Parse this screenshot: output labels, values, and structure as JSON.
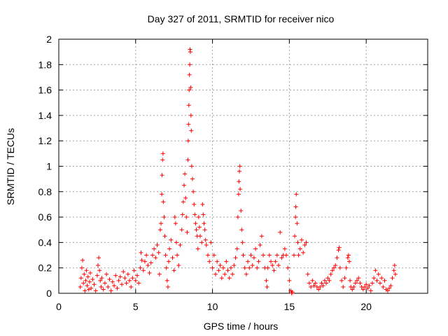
{
  "chart_data": {
    "type": "scatter",
    "title": "Day 327 of 2011, SRMTID for receiver nico",
    "xlabel": "GPS time / hours",
    "ylabel": "SRMTID / TECUs",
    "xlim": [
      0,
      24
    ],
    "ylim": [
      0,
      2
    ],
    "xticks": [
      "0",
      "5",
      "10",
      "15",
      "20"
    ],
    "yticks": [
      "0",
      "0.2",
      "0.4",
      "0.6",
      "0.8",
      "1",
      "1.2",
      "1.4",
      "1.6",
      "1.8",
      "2"
    ],
    "grid": true,
    "marker": "+",
    "color": "#ff0000",
    "series": [
      {
        "name": "SRMTID",
        "points": [
          [
            1.4,
            0.05
          ],
          [
            1.45,
            0.12
          ],
          [
            1.5,
            0.2
          ],
          [
            1.55,
            0.26
          ],
          [
            1.6,
            0.08
          ],
          [
            1.65,
            0.15
          ],
          [
            1.7,
            0.02
          ],
          [
            1.75,
            0.1
          ],
          [
            1.8,
            0.18
          ],
          [
            1.85,
            0.06
          ],
          [
            1.9,
            0.13
          ],
          [
            1.95,
            0.03
          ],
          [
            2.0,
            0.09
          ],
          [
            2.05,
            0.16
          ],
          [
            2.1,
            0.04
          ],
          [
            2.2,
            0.11
          ],
          [
            2.3,
            0.07
          ],
          [
            2.4,
            0.02
          ],
          [
            2.5,
            0.14
          ],
          [
            2.55,
            0.22
          ],
          [
            2.6,
            0.28
          ],
          [
            2.65,
            0.18
          ],
          [
            2.7,
            0.1
          ],
          [
            2.75,
            0.05
          ],
          [
            2.8,
            0.12
          ],
          [
            2.9,
            0.03
          ],
          [
            3.0,
            0.08
          ],
          [
            3.1,
            0.15
          ],
          [
            3.2,
            0.05
          ],
          [
            3.3,
            0.11
          ],
          [
            3.4,
            0.02
          ],
          [
            3.5,
            0.09
          ],
          [
            3.6,
            0.06
          ],
          [
            3.7,
            0.14
          ],
          [
            3.8,
            0.04
          ],
          [
            3.9,
            0.1
          ],
          [
            4.0,
            0.13
          ],
          [
            4.1,
            0.07
          ],
          [
            4.2,
            0.17
          ],
          [
            4.3,
            0.12
          ],
          [
            4.4,
            0.08
          ],
          [
            4.5,
            0.15
          ],
          [
            4.6,
            0.1
          ],
          [
            4.7,
            0.05
          ],
          [
            4.8,
            0.12
          ],
          [
            4.9,
            0.18
          ],
          [
            5.0,
            0.1
          ],
          [
            5.1,
            0.14
          ],
          [
            5.2,
            0.08
          ],
          [
            5.3,
            0.2
          ],
          [
            5.35,
            0.32
          ],
          [
            5.4,
            0.26
          ],
          [
            5.5,
            0.18
          ],
          [
            5.6,
            0.25
          ],
          [
            5.7,
            0.3
          ],
          [
            5.8,
            0.22
          ],
          [
            5.9,
            0.16
          ],
          [
            6.0,
            0.24
          ],
          [
            6.1,
            0.3
          ],
          [
            6.2,
            0.35
          ],
          [
            6.3,
            0.28
          ],
          [
            6.4,
            0.38
          ],
          [
            6.5,
            0.32
          ],
          [
            6.55,
            0.15
          ],
          [
            6.6,
            0.5
          ],
          [
            6.65,
            0.55
          ],
          [
            6.7,
            0.78
          ],
          [
            6.72,
            0.93
          ],
          [
            6.75,
            1.05
          ],
          [
            6.78,
            1.1
          ],
          [
            6.8,
            0.72
          ],
          [
            6.85,
            0.6
          ],
          [
            6.9,
            0.45
          ],
          [
            6.95,
            0.3
          ],
          [
            7.0,
            0.2
          ],
          [
            7.05,
            0.1
          ],
          [
            7.1,
            0.05
          ],
          [
            7.15,
            0.25
          ],
          [
            7.2,
            0.35
          ],
          [
            7.3,
            0.42
          ],
          [
            7.4,
            0.28
          ],
          [
            7.5,
            0.18
          ],
          [
            7.55,
            0.6
          ],
          [
            7.6,
            0.55
          ],
          [
            7.65,
            0.4
          ],
          [
            7.7,
            0.3
          ],
          [
            7.8,
            0.22
          ],
          [
            7.9,
            0.38
          ],
          [
            8.0,
            0.5
          ],
          [
            8.05,
            0.62
          ],
          [
            8.1,
            0.72
          ],
          [
            8.15,
            0.85
          ],
          [
            8.2,
            0.94
          ],
          [
            8.25,
            0.75
          ],
          [
            8.3,
            0.6
          ],
          [
            8.35,
            0.48
          ],
          [
            8.4,
            1.05
          ],
          [
            8.42,
            1.2
          ],
          [
            8.44,
            1.33
          ],
          [
            8.46,
            1.48
          ],
          [
            8.48,
            1.6
          ],
          [
            8.5,
            1.72
          ],
          [
            8.52,
            1.8
          ],
          [
            8.54,
            1.92
          ],
          [
            8.56,
            1.9
          ],
          [
            8.58,
            1.62
          ],
          [
            8.6,
            1.4
          ],
          [
            8.62,
            1.28
          ],
          [
            8.65,
            1.0
          ],
          [
            8.7,
            0.9
          ],
          [
            8.75,
            0.8
          ],
          [
            8.8,
            0.7
          ],
          [
            8.85,
            0.62
          ],
          [
            8.9,
            0.55
          ],
          [
            8.95,
            0.5
          ],
          [
            9.0,
            0.45
          ],
          [
            9.05,
            0.35
          ],
          [
            9.1,
            0.6
          ],
          [
            9.15,
            0.52
          ],
          [
            9.2,
            0.45
          ],
          [
            9.3,
            0.4
          ],
          [
            9.35,
            0.7
          ],
          [
            9.4,
            0.62
          ],
          [
            9.45,
            0.55
          ],
          [
            9.5,
            0.5
          ],
          [
            9.55,
            0.42
          ],
          [
            9.6,
            0.38
          ],
          [
            9.7,
            0.3
          ],
          [
            9.8,
            0.25
          ],
          [
            9.9,
            0.4
          ],
          [
            10.0,
            0.2
          ],
          [
            10.1,
            0.3
          ],
          [
            10.2,
            0.15
          ],
          [
            10.3,
            0.25
          ],
          [
            10.4,
            0.18
          ],
          [
            10.5,
            0.22
          ],
          [
            10.6,
            0.12
          ],
          [
            10.7,
            0.2
          ],
          [
            10.8,
            0.15
          ],
          [
            10.9,
            0.25
          ],
          [
            11.0,
            0.18
          ],
          [
            11.1,
            0.12
          ],
          [
            11.2,
            0.2
          ],
          [
            11.3,
            0.15
          ],
          [
            11.4,
            0.22
          ],
          [
            11.5,
            0.28
          ],
          [
            11.6,
            0.35
          ],
          [
            11.65,
            0.6
          ],
          [
            11.7,
            0.78
          ],
          [
            11.72,
            0.88
          ],
          [
            11.75,
            0.96
          ],
          [
            11.78,
            1.0
          ],
          [
            11.8,
            0.82
          ],
          [
            11.85,
            0.65
          ],
          [
            11.9,
            0.5
          ],
          [
            11.95,
            0.4
          ],
          [
            12.0,
            0.3
          ],
          [
            12.1,
            0.2
          ],
          [
            12.2,
            0.15
          ],
          [
            12.3,
            0.25
          ],
          [
            12.4,
            0.2
          ],
          [
            12.5,
            0.3
          ],
          [
            12.6,
            0.22
          ],
          [
            12.7,
            0.28
          ],
          [
            12.8,
            0.35
          ],
          [
            12.9,
            0.2
          ],
          [
            13.0,
            0.25
          ],
          [
            13.1,
            0.38
          ],
          [
            13.2,
            0.45
          ],
          [
            13.3,
            0.3
          ],
          [
            13.4,
            0.2
          ],
          [
            13.5,
            0.1
          ],
          [
            13.55,
            0.05
          ],
          [
            13.6,
            0.2
          ],
          [
            13.7,
            0.3
          ],
          [
            13.8,
            0.25
          ],
          [
            13.9,
            0.22
          ],
          [
            14.0,
            0.18
          ],
          [
            14.1,
            0.25
          ],
          [
            14.2,
            0.3
          ],
          [
            14.3,
            0.22
          ],
          [
            14.4,
            0.48
          ],
          [
            14.5,
            0.28
          ],
          [
            14.6,
            0.3
          ],
          [
            14.7,
            0.35
          ],
          [
            14.8,
            0.3
          ],
          [
            14.9,
            0.2
          ],
          [
            15.0,
            0.1
          ],
          [
            15.1,
            0.02
          ],
          [
            15.15,
            0.0
          ],
          [
            15.2,
            0.01
          ],
          [
            15.3,
            0.3
          ],
          [
            15.35,
            0.45
          ],
          [
            15.4,
            0.6
          ],
          [
            15.42,
            0.68
          ],
          [
            15.45,
            0.78
          ],
          [
            15.5,
            0.55
          ],
          [
            15.55,
            0.4
          ],
          [
            15.6,
            0.3
          ],
          [
            15.7,
            0.35
          ],
          [
            15.8,
            0.42
          ],
          [
            15.9,
            0.32
          ],
          [
            16.0,
            0.38
          ],
          [
            16.1,
            0.4
          ],
          [
            16.2,
            0.15
          ],
          [
            16.3,
            0.08
          ],
          [
            16.4,
            0.05
          ],
          [
            16.5,
            0.1
          ],
          [
            16.6,
            0.06
          ],
          [
            16.7,
            0.08
          ],
          [
            16.8,
            0.05
          ],
          [
            16.9,
            0.03
          ],
          [
            17.0,
            0.05
          ],
          [
            17.1,
            0.08
          ],
          [
            17.2,
            0.06
          ],
          [
            17.3,
            0.1
          ],
          [
            17.4,
            0.08
          ],
          [
            17.5,
            0.12
          ],
          [
            17.6,
            0.1
          ],
          [
            17.7,
            0.15
          ],
          [
            17.8,
            0.18
          ],
          [
            17.9,
            0.2
          ],
          [
            18.0,
            0.22
          ],
          [
            18.1,
            0.28
          ],
          [
            18.2,
            0.34
          ],
          [
            18.25,
            0.36
          ],
          [
            18.3,
            0.2
          ],
          [
            18.4,
            0.1
          ],
          [
            18.5,
            0.05
          ],
          [
            18.6,
            0.12
          ],
          [
            18.7,
            0.2
          ],
          [
            18.8,
            0.28
          ],
          [
            18.85,
            0.3
          ],
          [
            18.9,
            0.25
          ],
          [
            18.95,
            0.1
          ],
          [
            19.0,
            0.05
          ],
          [
            19.1,
            0.03
          ],
          [
            19.2,
            0.05
          ],
          [
            19.3,
            0.08
          ],
          [
            19.4,
            0.1
          ],
          [
            19.5,
            0.12
          ],
          [
            19.6,
            0.08
          ],
          [
            19.7,
            0.05
          ],
          [
            19.8,
            0.03
          ],
          [
            19.9,
            0.05
          ],
          [
            20.0,
            0.07
          ],
          [
            20.1,
            0.04
          ],
          [
            20.2,
            0.06
          ],
          [
            20.3,
            0.02
          ],
          [
            20.4,
            0.08
          ],
          [
            20.5,
            0.12
          ],
          [
            20.6,
            0.18
          ],
          [
            20.7,
            0.1
          ],
          [
            20.8,
            0.15
          ],
          [
            20.9,
            0.08
          ],
          [
            21.0,
            0.12
          ],
          [
            21.1,
            0.05
          ],
          [
            21.2,
            0.1
          ],
          [
            21.3,
            0.03
          ],
          [
            21.4,
            0.02
          ],
          [
            21.5,
            0.04
          ],
          [
            21.6,
            0.06
          ],
          [
            21.7,
            0.12
          ],
          [
            21.8,
            0.18
          ],
          [
            21.85,
            0.22
          ],
          [
            21.9,
            0.15
          ]
        ]
      }
    ]
  }
}
